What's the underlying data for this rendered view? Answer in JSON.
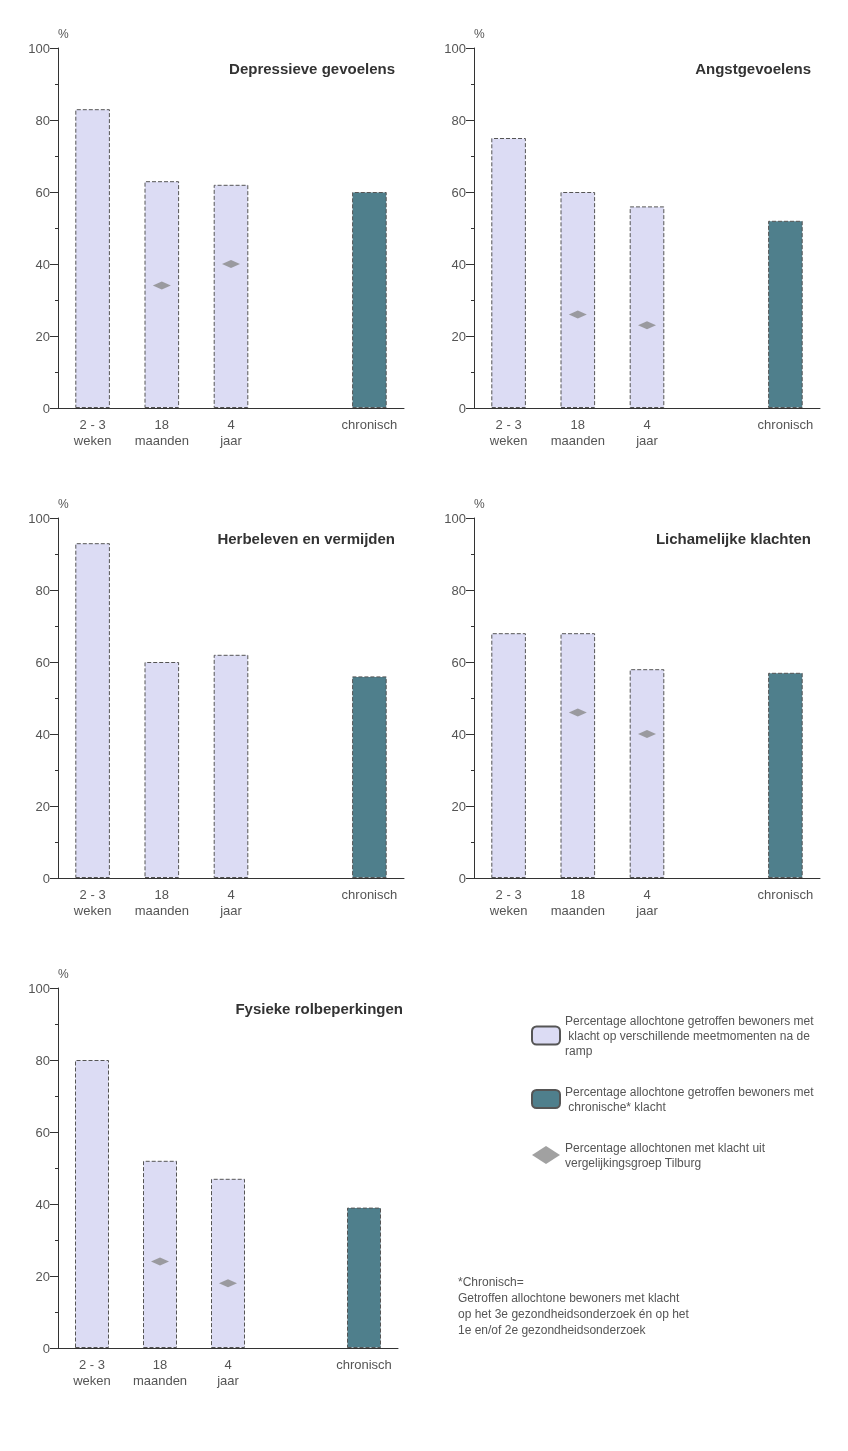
{
  "chart_data": [
    {
      "type": "bar",
      "title": "Depressieve gevoelens",
      "ylabel": "%",
      "marker": "diamond",
      "categories": [
        "2 - 3\nweken",
        "18\nmaanden",
        "4\njaar",
        null,
        "chronisch"
      ],
      "ylim": [
        0,
        100
      ],
      "yticks": [
        0,
        20,
        40,
        60,
        80,
        100
      ],
      "grid": false,
      "legend": false,
      "series": [
        {
          "color": "#dcdcf4",
          "values": [
            83,
            63,
            62,
            null,
            null
          ]
        },
        {
          "color": "#4f7f8c",
          "values": [
            null,
            null,
            null,
            null,
            60
          ]
        },
        {
          "type": "scatter",
          "color": "#8a8a8a",
          "values": [
            null,
            34,
            40,
            null,
            null
          ]
        }
      ]
    },
    {
      "type": "bar",
      "title": "Angstgevoelens",
      "ylabel": "%",
      "marker": "diamond",
      "categories": [
        "2 - 3\nweken",
        "18\nmaanden",
        "4\njaar",
        null,
        "chronisch"
      ],
      "ylim": [
        0,
        100
      ],
      "yticks": [
        0,
        20,
        40,
        60,
        80,
        100
      ],
      "grid": false,
      "legend": false,
      "series": [
        {
          "color": "#dcdcf4",
          "values": [
            75,
            60,
            56,
            null,
            null
          ]
        },
        {
          "color": "#4f7f8c",
          "values": [
            null,
            null,
            null,
            null,
            52
          ]
        },
        {
          "type": "scatter",
          "color": "#8a8a8a",
          "values": [
            null,
            26,
            23,
            null,
            null
          ]
        }
      ]
    },
    {
      "type": "bar",
      "title": "Herbeleven en vermijden",
      "ylabel": "%",
      "categories": [
        "2 - 3\nweken",
        "18\nmaanden",
        "4\njaar",
        null,
        "chronisch"
      ],
      "ylim": [
        0,
        100
      ],
      "yticks": [
        0,
        20,
        40,
        60,
        80,
        100
      ],
      "grid": false,
      "legend": false,
      "series": [
        {
          "color": "#dcdcf4",
          "values": [
            93,
            60,
            62,
            null,
            null
          ]
        },
        {
          "color": "#4f7f8c",
          "values": [
            null,
            null,
            null,
            null,
            56
          ]
        }
      ]
    },
    {
      "type": "bar",
      "title": "Lichamelijke klachten",
      "ylabel": "%",
      "marker": "diamond",
      "categories": [
        "2 - 3\nweken",
        "18\nmaanden",
        "4\njaar",
        null,
        "chronisch"
      ],
      "ylim": [
        0,
        100
      ],
      "yticks": [
        0,
        20,
        40,
        60,
        80,
        100
      ],
      "grid": false,
      "legend": false,
      "series": [
        {
          "color": "#dcdcf4",
          "values": [
            68,
            68,
            58,
            null,
            null
          ]
        },
        {
          "color": "#4f7f8c",
          "values": [
            null,
            null,
            null,
            null,
            57
          ]
        },
        {
          "type": "scatter",
          "color": "#8a8a8a",
          "values": [
            null,
            46,
            40,
            null,
            null
          ]
        }
      ]
    },
    {
      "type": "bar",
      "title": "Fysieke rolbeperkingen",
      "ylabel": "%",
      "marker": "diamond",
      "categories": [
        "2 - 3\nweken",
        "18\nmaanden",
        "4\njaar",
        null,
        "chronisch"
      ],
      "ylim": [
        0,
        100
      ],
      "yticks": [
        0,
        20,
        40,
        60,
        80,
        100
      ],
      "grid": false,
      "legend": "right",
      "annotations": [
        "*Chronisch=\nGetroffen allochtone bewoners met klacht\nop het 3e gezondheidsonderzoek én op het\n1e en/of 2e gezondheidsonderzoek"
      ],
      "series": [
        {
          "name": "Percentage allochtone getroffen bewoners met klacht op verschillende meetmomenten na de ramp",
          "color": "#dcdcf4",
          "values": [
            80,
            52,
            47,
            null,
            null
          ]
        },
        {
          "name": "Percentage allochtone getroffen bewoners met chronische* klacht",
          "color": "#4f7f8c",
          "values": [
            null,
            null,
            null,
            null,
            39
          ]
        },
        {
          "name": "Percentage allochtonen met klacht uit vergelijkingsgroep Tilburg",
          "type": "scatter",
          "color": "#8a8a8a",
          "values": [
            null,
            24,
            18,
            null,
            null
          ]
        }
      ]
    }
  ]
}
